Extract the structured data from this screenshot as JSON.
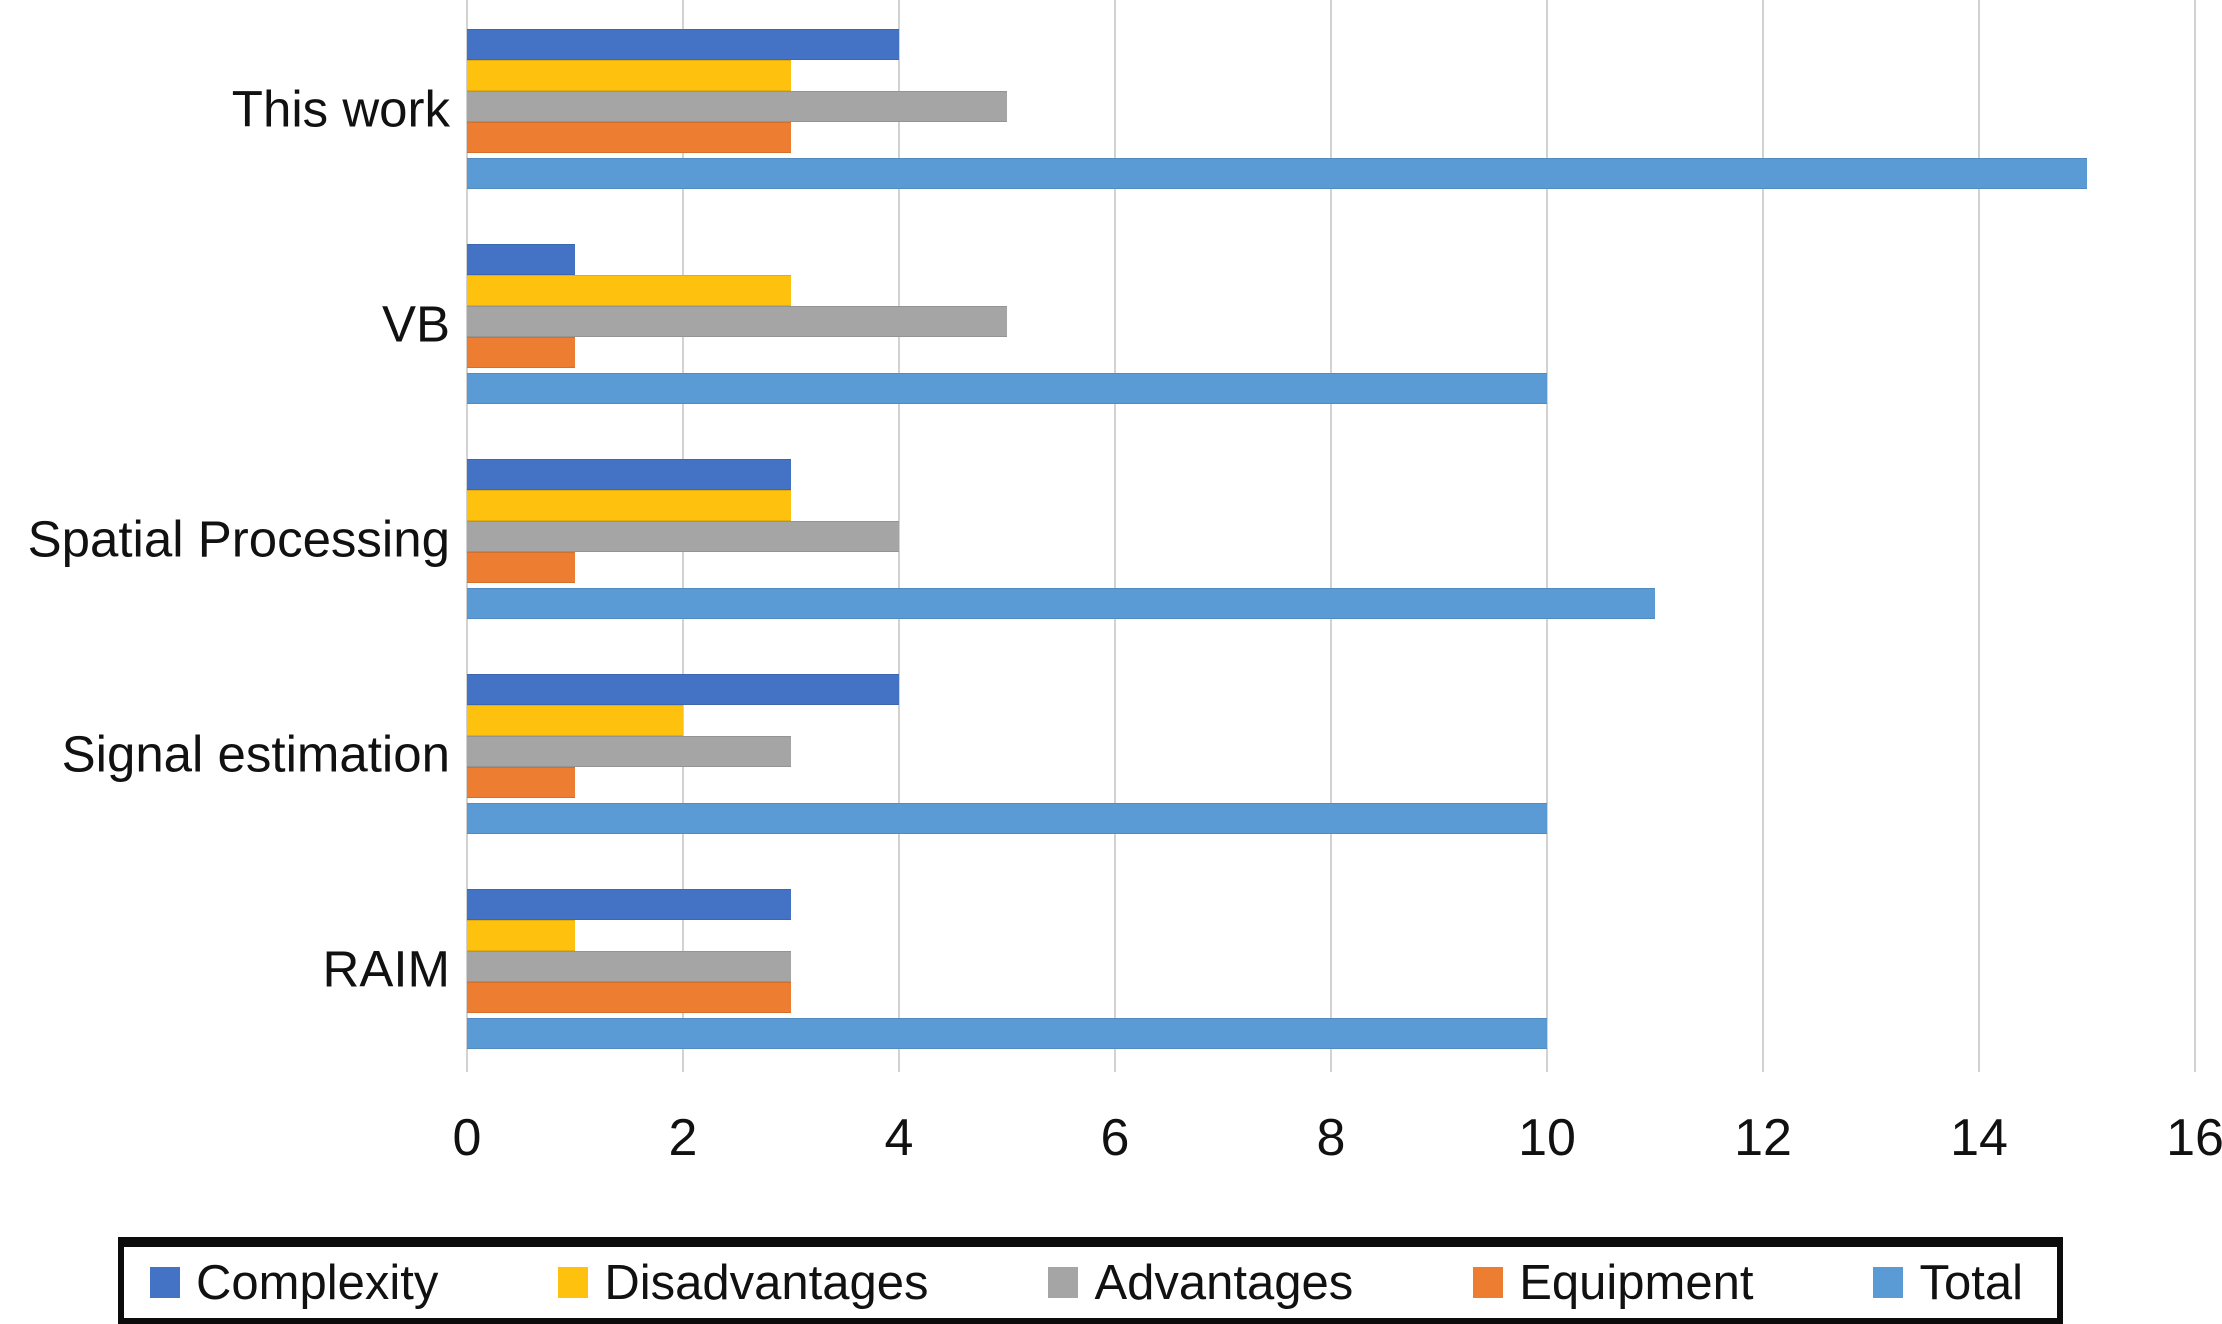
{
  "chart_data": {
    "type": "bar",
    "orientation": "horizontal",
    "title": "",
    "xlabel": "",
    "ylabel": "",
    "xlim": [
      0,
      16
    ],
    "x_ticks": [
      0,
      2,
      4,
      6,
      8,
      10,
      12,
      14,
      16
    ],
    "grid": true,
    "legend_position": "bottom",
    "categories": [
      "This work",
      "VB",
      "Spatial Processing",
      "Signal estimation",
      "RAIM"
    ],
    "series": [
      {
        "name": "Complexity",
        "color": "#4472C4",
        "values": [
          4,
          1,
          3,
          4,
          3
        ]
      },
      {
        "name": "Disadvantages",
        "color": "#FEC10D",
        "values": [
          3,
          3,
          3,
          2,
          1
        ]
      },
      {
        "name": "Advantages",
        "color": "#A5A5A5",
        "values": [
          5,
          5,
          4,
          3,
          3
        ]
      },
      {
        "name": "Equipment",
        "color": "#ED7D31",
        "values": [
          3,
          1,
          1,
          1,
          3
        ]
      },
      {
        "name": "Total",
        "color": "#5B9BD5",
        "values": [
          15,
          10,
          11,
          10,
          10
        ]
      }
    ]
  },
  "colors": {
    "gridline": "#D2D2D2",
    "text": "#111111",
    "legend_border": "#0C0C0C",
    "background": "#FFFFFF"
  }
}
